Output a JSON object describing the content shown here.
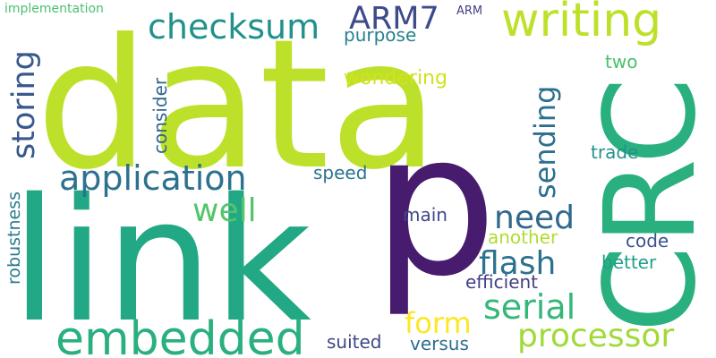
{
  "word_cloud": {
    "words": [
      {
        "text": "data",
        "color": "#bde12a"
      },
      {
        "text": "link",
        "color": "#22a884"
      },
      {
        "text": "p",
        "color": "#471c6e"
      },
      {
        "text": "CRC",
        "color": "#2ab07f"
      },
      {
        "text": "writing",
        "color": "#bde12a"
      },
      {
        "text": "checksum",
        "color": "#21918c"
      },
      {
        "text": "ARM7",
        "color": "#3e4a89"
      },
      {
        "text": "embedded",
        "color": "#2ab07f"
      },
      {
        "text": "application",
        "color": "#2c728e"
      },
      {
        "text": "storing",
        "color": "#38598c"
      },
      {
        "text": "well",
        "color": "#54c568"
      },
      {
        "text": "need",
        "color": "#31688e"
      },
      {
        "text": "flash",
        "color": "#2c728e"
      },
      {
        "text": "serial",
        "color": "#35b779"
      },
      {
        "text": "processor",
        "color": "#a0da39"
      },
      {
        "text": "sending",
        "color": "#2d708e"
      },
      {
        "text": "form",
        "color": "#fde725"
      },
      {
        "text": "purpose",
        "color": "#26828e"
      },
      {
        "text": "wondering",
        "color": "#d2e21b"
      },
      {
        "text": "two",
        "color": "#4ac16d"
      },
      {
        "text": "consider",
        "color": "#32658e"
      },
      {
        "text": "speed",
        "color": "#2c738e"
      },
      {
        "text": "main",
        "color": "#3e4a89"
      },
      {
        "text": "trade",
        "color": "#20928c"
      },
      {
        "text": "another",
        "color": "#b0dd2f"
      },
      {
        "text": "code",
        "color": "#3b528b"
      },
      {
        "text": "better",
        "color": "#1f9f88"
      },
      {
        "text": "efficient",
        "color": "#424086"
      },
      {
        "text": "robustness",
        "color": "#297b8e"
      },
      {
        "text": "suited",
        "color": "#3f4788"
      },
      {
        "text": "versus",
        "color": "#2e6e8e"
      },
      {
        "text": "implementation",
        "color": "#4ac16d"
      },
      {
        "text": "ARM",
        "color": "#433e85"
      }
    ]
  }
}
